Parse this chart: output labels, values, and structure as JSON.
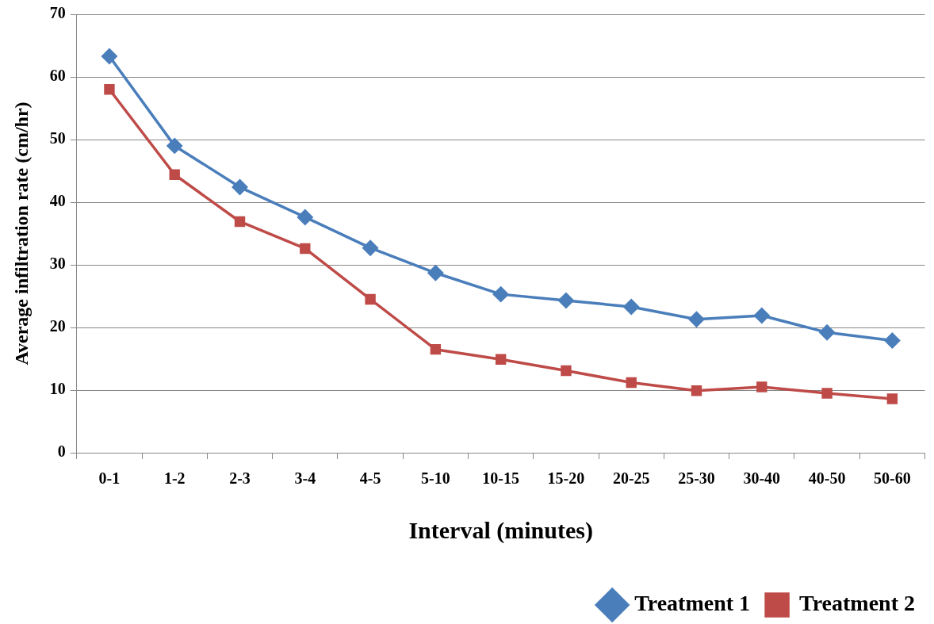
{
  "chart_data": {
    "type": "line",
    "xlabel": "Interval (minutes)",
    "ylabel": "Average infiltration rate (cm/hr)",
    "categories": [
      "0-1",
      "1-2",
      "2-3",
      "3-4",
      "4-5",
      "5-10",
      "10-15",
      "15-20",
      "20-25",
      "25-30",
      "30-40",
      "40-50",
      "50-60"
    ],
    "series": [
      {
        "name": "Treatment 1",
        "color": "#4a7ebb",
        "marker": "diamond",
        "values": [
          63.3,
          49.0,
          42.4,
          37.6,
          32.7,
          28.7,
          25.3,
          24.3,
          23.3,
          21.3,
          21.9,
          19.2,
          17.9
        ]
      },
      {
        "name": "Treatment 2",
        "color": "#be4b48",
        "marker": "square",
        "values": [
          58.0,
          44.4,
          36.9,
          32.6,
          24.5,
          16.5,
          14.9,
          13.1,
          11.2,
          9.9,
          10.5,
          9.5,
          8.6
        ]
      }
    ],
    "ylim": [
      0,
      70
    ],
    "yticks": [
      0,
      10,
      20,
      30,
      40,
      50,
      60,
      70
    ],
    "grid": "y",
    "legend": "bottom",
    "line_style": "solid"
  }
}
